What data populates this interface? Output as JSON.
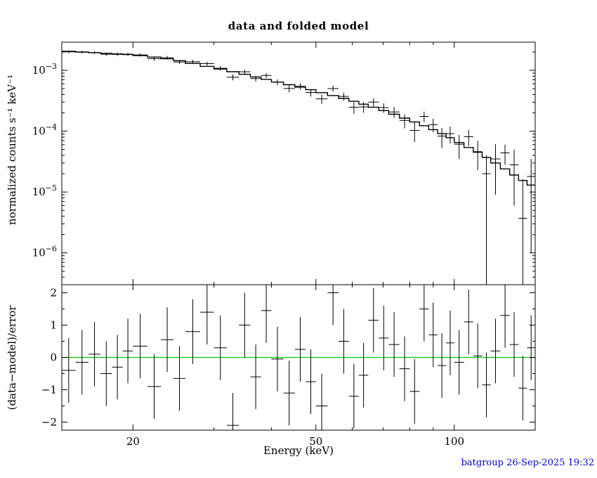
{
  "footer": {
    "text": "batgroup 26-Sep-2025 19:32",
    "color": "#0000cc"
  },
  "chart_data": {
    "type": "scatter",
    "title": "data and folded model",
    "xlabel": "Energy (keV)",
    "xscale": "log",
    "xlim": [
      14,
      150
    ],
    "xticks": [
      {
        "value": 20,
        "label": "20"
      },
      {
        "value": 50,
        "label": "50"
      },
      {
        "value": 100,
        "label": "100"
      }
    ],
    "x_minor_ticks": [
      30,
      40,
      60,
      70,
      80,
      90
    ],
    "series": [
      {
        "name": "data",
        "style": "error-bars",
        "color": "#000000"
      },
      {
        "name": "folded model",
        "style": "histogram-steps",
        "color": "#000000"
      }
    ],
    "panels": [
      {
        "name": "spectrum",
        "ylabel": "normalized counts s⁻¹ keV⁻¹",
        "yscale": "log",
        "ylim": [
          3e-07,
          0.0029
        ],
        "yticks": [
          {
            "value": 0.001,
            "base": "10",
            "exp": "−3"
          },
          {
            "value": 0.0001,
            "base": "10",
            "exp": "−4"
          },
          {
            "value": 1e-05,
            "base": "10",
            "exp": "−5"
          },
          {
            "value": 1e-06,
            "base": "10",
            "exp": "−6"
          }
        ]
      },
      {
        "name": "residuals",
        "ylabel": "(data−model)/error",
        "yscale": "linear",
        "ylim": [
          -2.25,
          2.25
        ],
        "yticks": [
          {
            "value": 2,
            "label": "2"
          },
          {
            "value": 1,
            "label": "1"
          },
          {
            "value": 0,
            "label": "0"
          },
          {
            "value": -1,
            "label": "−1"
          },
          {
            "value": -2,
            "label": "−2"
          }
        ],
        "y_minor_ticks": [
          1.5,
          0.5,
          -0.5,
          -1.5
        ],
        "errorbar_halfwidth": 1,
        "zero_line_color": "#00cc00"
      }
    ],
    "bins": {
      "e_lo": [
        14,
        15,
        16,
        17,
        18,
        19,
        20,
        21.5,
        23,
        24.5,
        26,
        28,
        30,
        32,
        34,
        36,
        38,
        40,
        42.5,
        45,
        47.5,
        50,
        53,
        56,
        59,
        62,
        65,
        68.5,
        72,
        76,
        80,
        84,
        88,
        92,
        96,
        100,
        105,
        110,
        115,
        120,
        126,
        132,
        138,
        144
      ],
      "e_hi": [
        15,
        16,
        17,
        18,
        19,
        20,
        21.5,
        23,
        24.5,
        26,
        28,
        30,
        32,
        34,
        36,
        38,
        40,
        42.5,
        45,
        47.5,
        50,
        53,
        56,
        59,
        62,
        65,
        68.5,
        72,
        76,
        80,
        84,
        88,
        92,
        96,
        100,
        105,
        110,
        115,
        120,
        126,
        132,
        138,
        144,
        150
      ],
      "model": [
        0.00205,
        0.002,
        0.00195,
        0.0019,
        0.00186,
        0.00182,
        0.00175,
        0.00165,
        0.00155,
        0.00144,
        0.0013,
        0.00116,
        0.00105,
        0.00095,
        0.00086,
        0.00078,
        0.00071,
        0.00064,
        0.00058,
        0.00053,
        0.00048,
        0.00043,
        0.000385,
        0.000345,
        0.00031,
        0.000278,
        0.000247,
        0.000218,
        0.00019,
        0.000164,
        0.000142,
        0.000123,
        0.000106,
        9.1e-05,
        7.8e-05,
        6.5e-05,
        5.4e-05,
        4.5e-05,
        3.7e-05,
        3e-05,
        2.4e-05,
        1.9e-05,
        1.55e-05,
        1.3e-05
      ],
      "data": [
        0.00201,
        0.00199,
        0.00196,
        0.00184,
        0.00183,
        0.00184,
        0.00179,
        0.00155,
        0.00161,
        0.00137,
        0.00138,
        0.00129,
        0.00108,
        0.00077,
        0.000946,
        0.000733,
        0.000823,
        0.000636,
        0.000503,
        0.000546,
        0.000433,
        0.00034,
        0.000501,
        0.000373,
        0.000247,
        0.00025,
        0.000301,
        0.000244,
        0.000207,
        0.00015,
        0.000103,
        0.000175,
        0.000128,
        8.3e-05,
        9.1e-05,
        6.1e-05,
        8.1e-05,
        4.6e-05,
        2e-05,
        3.5e-05,
        4.4e-05,
        2.8e-05,
        3.7e-06,
        1.8e-05
      ],
      "err": [
        0.0001,
        0.0001,
        9.8e-05,
        0.000114,
        0.000112,
        0.000109,
        0.000105,
        0.000116,
        0.000109,
        0.000101,
        0.000104,
        9.3e-05,
        9.5e-05,
        8.6e-05,
        8.6e-05,
        7.8e-05,
        7.8e-05,
        7e-05,
        7e-05,
        6.4e-05,
        6.2e-05,
        6e-05,
        5.8e-05,
        5.5e-05,
        5.3e-05,
        5e-05,
        4.7e-05,
        4.4e-05,
        4.2e-05,
        3.9e-05,
        3.7e-05,
        3.4e-05,
        3.2e-05,
        3e-05,
        2.8e-05,
        2.6e-05,
        2.4e-05,
        2.3e-05,
        2e-05,
        2.6e-05,
        1.6e-05,
        2.2e-05,
        1.24e-05,
        1.7e-05
      ],
      "residual": [
        -0.4,
        -0.15,
        0.1,
        -0.5,
        -0.3,
        0.2,
        0.35,
        -0.9,
        0.55,
        -0.65,
        0.8,
        1.4,
        0.3,
        -2.1,
        1.0,
        -0.6,
        1.45,
        -0.05,
        -1.1,
        0.25,
        -0.75,
        -1.5,
        2.0,
        0.5,
        -1.2,
        -0.55,
        1.15,
        0.6,
        0.4,
        -0.35,
        -1.05,
        1.5,
        0.7,
        -0.25,
        0.45,
        -0.15,
        1.1,
        0.05,
        -0.85,
        0.2,
        1.3,
        0.4,
        -0.95,
        0.3
      ]
    }
  }
}
